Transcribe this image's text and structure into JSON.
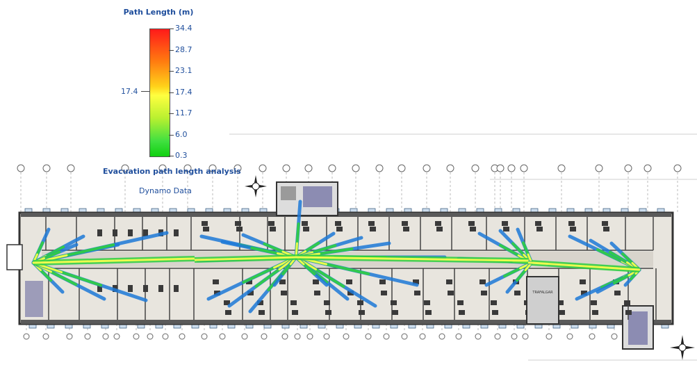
{
  "legend": {
    "title": "Path Length (m)",
    "ticks": [
      "34.4",
      "28.7",
      "23.1",
      "17.4",
      "11.7",
      "6.0",
      "0.3"
    ],
    "mid_value": "17.4",
    "colors": {
      "max": "#ff1a1a",
      "mid": "#ffff40",
      "min": "#10d010"
    }
  },
  "captions": {
    "analysis_title": "Evacuation path length analysis",
    "source": "Dynamo Data"
  },
  "plan": {
    "room_label": "TRAFALGAR",
    "colors": {
      "wall": "#333333",
      "floor": "#e6e3dc",
      "path_low": "#1e7ad8",
      "path_mid": "#30d040",
      "path_high": "#ffff50"
    }
  }
}
